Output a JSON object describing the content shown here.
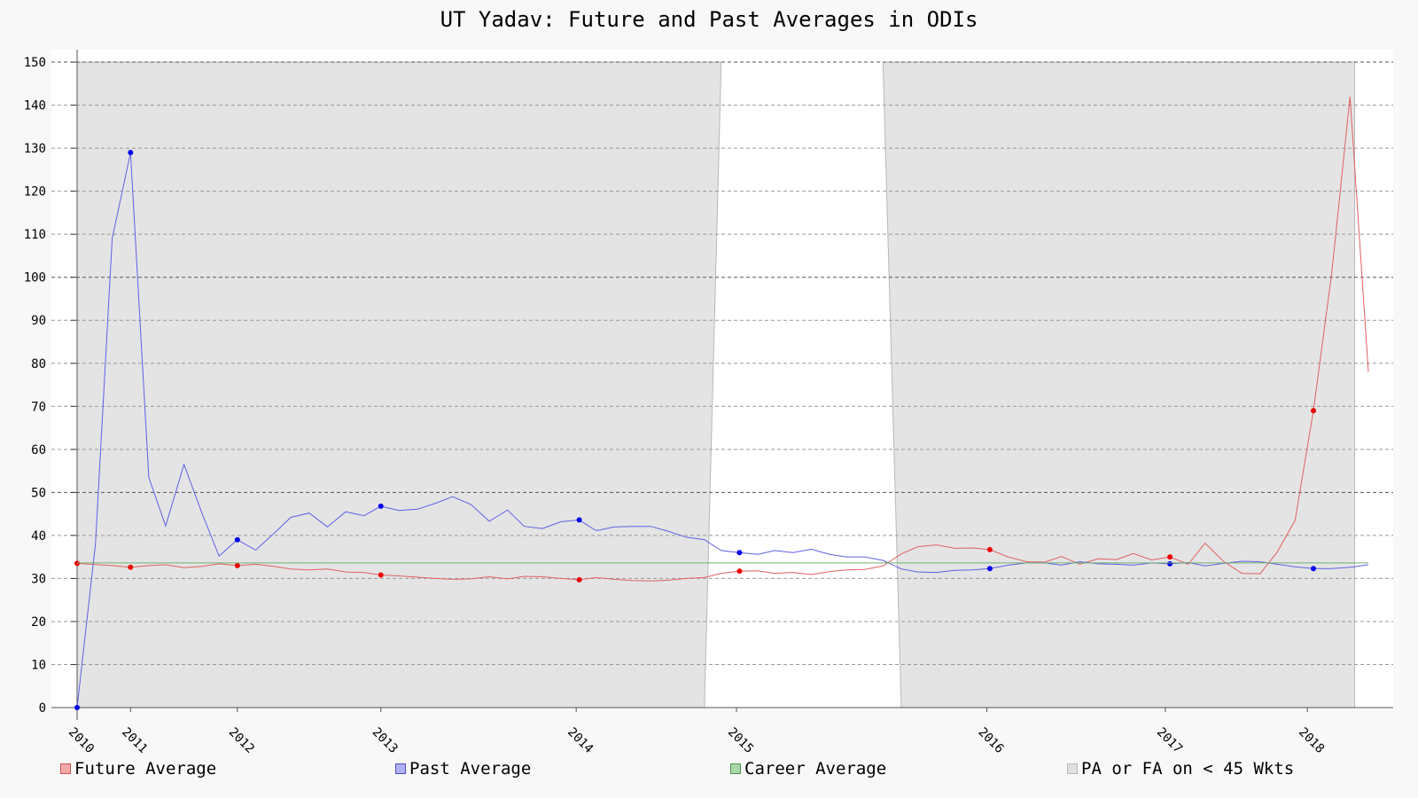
{
  "chart_data": {
    "type": "line",
    "title": "UT Yadav: Future and Past Averages in ODIs",
    "xlabel": "",
    "ylabel": "",
    "ylim": [
      0,
      150
    ],
    "xlim": [
      2009.97,
      2018.38
    ],
    "y_ticks": [
      0,
      10,
      20,
      30,
      40,
      50,
      60,
      70,
      80,
      90,
      100,
      110,
      120,
      130,
      140,
      150
    ],
    "x_tick_labels": [
      {
        "label": "2010",
        "x": 2010.0
      },
      {
        "label": "2011",
        "x": 2010.35
      },
      {
        "label": "2012",
        "x": 2011.05
      },
      {
        "label": "2013",
        "x": 2011.99
      },
      {
        "label": "2014",
        "x": 2013.27
      },
      {
        "label": "2015",
        "x": 2014.32
      },
      {
        "label": "2016",
        "x": 2015.96
      },
      {
        "label": "2017",
        "x": 2017.13
      },
      {
        "label": "2018",
        "x": 2018.06
      }
    ],
    "grid": true,
    "legend_position": "bottom",
    "shaded_regions": [
      {
        "name": "PA or FA on < 45 Wkts",
        "from": 2010.0,
        "to": 2014.11,
        "to_top": 2014.22,
        "color": "#e4e4e4"
      },
      {
        "name": "PA or FA on < 45 Wkts",
        "from": 2015.4,
        "to": 2018.37,
        "from_top": 2015.28,
        "color": "#e4e4e4"
      }
    ],
    "series": [
      {
        "name": "Future Average",
        "color": "#e06060",
        "marker_color": "#ee0000",
        "points": [
          [
            2010.0,
            33.5
          ],
          [
            2010.23,
            33.0
          ],
          [
            2010.35,
            32.6
          ],
          [
            2010.47,
            33.0
          ],
          [
            2010.58,
            33.2
          ],
          [
            2010.7,
            32.5
          ],
          [
            2010.82,
            32.8
          ],
          [
            2010.93,
            33.4
          ],
          [
            2011.05,
            33.0
          ],
          [
            2011.17,
            33.3
          ],
          [
            2011.29,
            32.8
          ],
          [
            2011.4,
            32.2
          ],
          [
            2011.52,
            32.0
          ],
          [
            2011.64,
            32.2
          ],
          [
            2011.76,
            31.5
          ],
          [
            2011.88,
            31.4
          ],
          [
            2011.99,
            30.8
          ],
          [
            2012.11,
            30.6
          ],
          [
            2012.23,
            30.3
          ],
          [
            2012.35,
            30.0
          ],
          [
            2012.46,
            29.8
          ],
          [
            2012.58,
            29.9
          ],
          [
            2012.7,
            30.4
          ],
          [
            2012.82,
            29.9
          ],
          [
            2012.93,
            30.5
          ],
          [
            2013.05,
            30.4
          ],
          [
            2013.17,
            30.0
          ],
          [
            2013.29,
            29.7
          ],
          [
            2013.4,
            30.2
          ],
          [
            2013.52,
            29.8
          ],
          [
            2013.64,
            29.5
          ],
          [
            2013.76,
            29.4
          ],
          [
            2013.87,
            29.6
          ],
          [
            2013.99,
            30.0
          ],
          [
            2014.11,
            30.2
          ],
          [
            2014.22,
            31.2
          ],
          [
            2014.34,
            31.7
          ],
          [
            2014.46,
            31.8
          ],
          [
            2014.57,
            31.2
          ],
          [
            2014.69,
            31.4
          ],
          [
            2014.81,
            30.9
          ],
          [
            2014.93,
            31.6
          ],
          [
            2015.04,
            32.0
          ],
          [
            2015.16,
            32.1
          ],
          [
            2015.28,
            32.9
          ],
          [
            2015.4,
            35.7
          ],
          [
            2015.51,
            37.4
          ],
          [
            2015.63,
            37.8
          ],
          [
            2015.75,
            37.0
          ],
          [
            2015.87,
            37.1
          ],
          [
            2015.98,
            36.7
          ],
          [
            2016.1,
            35.0
          ],
          [
            2016.22,
            33.9
          ],
          [
            2016.34,
            33.8
          ],
          [
            2016.45,
            35.1
          ],
          [
            2016.57,
            33.3
          ],
          [
            2016.69,
            34.6
          ],
          [
            2016.81,
            34.4
          ],
          [
            2016.92,
            35.8
          ],
          [
            2017.04,
            34.3
          ],
          [
            2017.16,
            35.0
          ],
          [
            2017.28,
            33.3
          ],
          [
            2017.39,
            38.2
          ],
          [
            2017.51,
            34.0
          ],
          [
            2017.63,
            31.2
          ],
          [
            2017.75,
            31.1
          ],
          [
            2017.86,
            36.0
          ],
          [
            2017.98,
            43.5
          ],
          [
            2018.1,
            69.0
          ],
          [
            2018.22,
            101.0
          ],
          [
            2018.34,
            142.0
          ],
          [
            2018.46,
            78.0
          ]
        ],
        "markers": [
          [
            2010.0,
            33.5
          ],
          [
            2010.35,
            32.6
          ],
          [
            2011.05,
            33.0
          ],
          [
            2011.99,
            30.8
          ],
          [
            2013.29,
            29.7
          ],
          [
            2014.34,
            31.7
          ],
          [
            2015.98,
            36.7
          ],
          [
            2017.16,
            35.0
          ],
          [
            2018.1,
            69.0
          ]
        ]
      },
      {
        "name": "Past Average",
        "color": "#6060e6",
        "marker_color": "#0000ee",
        "points": [
          [
            2010.0,
            0.0
          ],
          [
            2010.12,
            38.0
          ],
          [
            2010.23,
            109.0
          ],
          [
            2010.35,
            129.0
          ],
          [
            2010.47,
            53.5
          ],
          [
            2010.58,
            42.2
          ],
          [
            2010.7,
            56.5
          ],
          [
            2010.82,
            45.0
          ],
          [
            2010.93,
            35.2
          ],
          [
            2011.05,
            39.0
          ],
          [
            2011.17,
            36.6
          ],
          [
            2011.29,
            40.5
          ],
          [
            2011.4,
            44.2
          ],
          [
            2011.52,
            45.2
          ],
          [
            2011.64,
            42.0
          ],
          [
            2011.76,
            45.5
          ],
          [
            2011.88,
            44.6
          ],
          [
            2011.99,
            46.8
          ],
          [
            2012.11,
            45.8
          ],
          [
            2012.23,
            46.1
          ],
          [
            2012.35,
            47.5
          ],
          [
            2012.46,
            49.0
          ],
          [
            2012.58,
            47.2
          ],
          [
            2012.7,
            43.3
          ],
          [
            2012.82,
            45.9
          ],
          [
            2012.93,
            42.1
          ],
          [
            2013.05,
            41.6
          ],
          [
            2013.17,
            43.2
          ],
          [
            2013.29,
            43.6
          ],
          [
            2013.4,
            41.1
          ],
          [
            2013.52,
            42.0
          ],
          [
            2013.64,
            42.1
          ],
          [
            2013.76,
            42.1
          ],
          [
            2013.87,
            41.0
          ],
          [
            2013.99,
            39.6
          ],
          [
            2014.11,
            39.0
          ],
          [
            2014.22,
            36.5
          ],
          [
            2014.34,
            36.0
          ],
          [
            2014.46,
            35.6
          ],
          [
            2014.57,
            36.5
          ],
          [
            2014.69,
            36.0
          ],
          [
            2014.81,
            36.8
          ],
          [
            2014.93,
            35.6
          ],
          [
            2015.04,
            35.0
          ],
          [
            2015.16,
            35.0
          ],
          [
            2015.28,
            34.2
          ],
          [
            2015.4,
            32.2
          ],
          [
            2015.51,
            31.5
          ],
          [
            2015.63,
            31.4
          ],
          [
            2015.75,
            31.9
          ],
          [
            2015.87,
            32.0
          ],
          [
            2015.98,
            32.3
          ],
          [
            2016.1,
            33.1
          ],
          [
            2016.22,
            33.6
          ],
          [
            2016.34,
            33.6
          ],
          [
            2016.45,
            33.1
          ],
          [
            2016.57,
            33.9
          ],
          [
            2016.69,
            33.4
          ],
          [
            2016.81,
            33.3
          ],
          [
            2016.92,
            33.1
          ],
          [
            2017.04,
            33.6
          ],
          [
            2017.16,
            33.4
          ],
          [
            2017.28,
            33.7
          ],
          [
            2017.39,
            32.9
          ],
          [
            2017.51,
            33.5
          ],
          [
            2017.63,
            34.0
          ],
          [
            2017.75,
            33.9
          ],
          [
            2017.86,
            33.3
          ],
          [
            2017.98,
            32.7
          ],
          [
            2018.1,
            32.3
          ],
          [
            2018.22,
            32.3
          ],
          [
            2018.34,
            32.6
          ],
          [
            2018.46,
            33.2
          ]
        ],
        "markers": [
          [
            2010.0,
            0.0
          ],
          [
            2010.35,
            129.0
          ],
          [
            2011.05,
            39.0
          ],
          [
            2011.99,
            46.8
          ],
          [
            2013.29,
            43.6
          ],
          [
            2014.34,
            36.0
          ],
          [
            2015.98,
            32.3
          ],
          [
            2017.16,
            33.4
          ],
          [
            2018.1,
            32.3
          ]
        ]
      },
      {
        "name": "Career Average",
        "color": "#70b070",
        "points": [
          [
            2010.0,
            33.6
          ],
          [
            2018.46,
            33.6
          ]
        ],
        "markers": []
      }
    ],
    "legend": [
      {
        "label": "Future Average",
        "fill": "#f4a8a8",
        "border": "#d05050"
      },
      {
        "label": "Past Average",
        "fill": "#b0b0f4",
        "border": "#5050c0"
      },
      {
        "label": "Career Average",
        "fill": "#a8d8a8",
        "border": "#509050"
      },
      {
        "label": "PA or FA on < 45 Wkts",
        "fill": "#e0e0e0",
        "border": "#b8b8b8"
      }
    ]
  }
}
